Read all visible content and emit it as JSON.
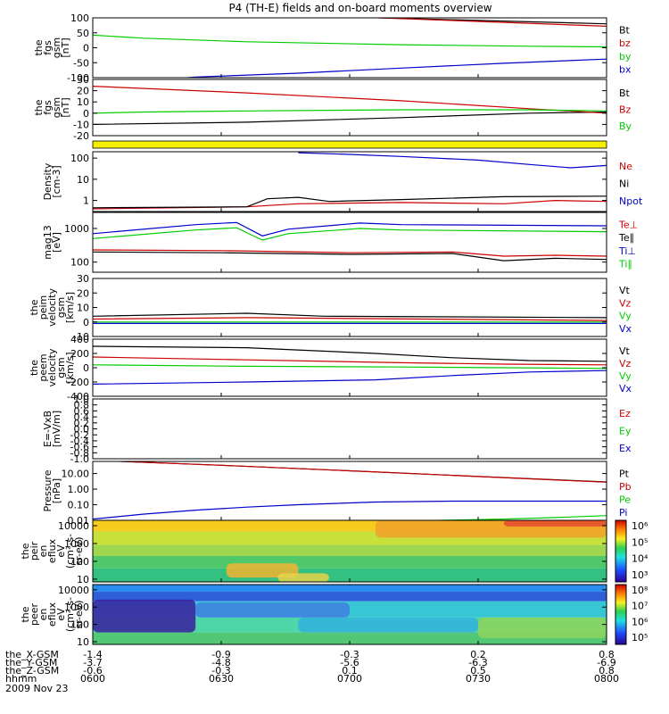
{
  "title": "P4 (TH-E) fields and on-board moments overview",
  "date_label": "2009 Nov 23",
  "footer": {
    "rows": [
      {
        "label": "the_X-GSM",
        "values": [
          "-1.4",
          "-0.9",
          "-0.3",
          "0.2",
          "0.8"
        ]
      },
      {
        "label": "the_Y-GSM",
        "values": [
          "-3.7",
          "-4.8",
          "-5.6",
          "-6.3",
          "-6.9"
        ]
      },
      {
        "label": "the_Z-GSM",
        "values": [
          "-0.6",
          "-0.3",
          "0.1",
          "0.5",
          "0.8"
        ]
      },
      {
        "label": "hhmm",
        "values": [
          "0600",
          "0630",
          "0700",
          "0730",
          "0800"
        ]
      }
    ]
  },
  "colorbars": [
    {
      "labels": [
        "10⁶",
        "10⁵",
        "10⁴",
        "10³"
      ]
    },
    {
      "labels": [
        "10⁸",
        "10⁷",
        "10⁶",
        "10⁵"
      ]
    }
  ],
  "chart_data": [
    {
      "type": "line",
      "ylabel": [
        "the",
        "fgs",
        "gsm",
        "[nT]"
      ],
      "ylim": [
        -100,
        100
      ],
      "yticks": [
        "100",
        "50",
        "0",
        "-50",
        "-100"
      ],
      "x": [
        "0600",
        "0630",
        "0700",
        "0730",
        "0800"
      ],
      "series": [
        {
          "name": "Bt",
          "color": "#000000",
          "x": [
            0.0,
            0.28,
            0.56,
            1.0
          ],
          "values": [
            120,
            112,
            100,
            80
          ]
        },
        {
          "name": "bz",
          "color": "#cc0000",
          "x": [
            0.0,
            0.28,
            0.56,
            1.0
          ],
          "values": [
            128,
            117,
            100,
            72
          ]
        },
        {
          "name": "by",
          "color": "#00cc00",
          "x": [
            0.0,
            0.1,
            0.3,
            0.6,
            0.85,
            1.0
          ],
          "values": [
            42,
            32,
            20,
            10,
            5,
            3
          ]
        },
        {
          "name": "bx",
          "color": "#0000cc",
          "x": [
            0.0,
            0.2,
            0.4,
            0.6,
            0.8,
            1.0
          ],
          "values": [
            -125,
            -98,
            -85,
            -68,
            -52,
            -38
          ]
        }
      ]
    },
    {
      "type": "line",
      "ylabel": [
        "the",
        "fgs",
        "gsm",
        "[nT]"
      ],
      "ylim": [
        -20,
        30
      ],
      "yticks": [
        "30",
        "20",
        "10",
        "0",
        "-10",
        "-20"
      ],
      "x": [
        "0600",
        "0630",
        "0700",
        "0730",
        "0800"
      ],
      "series": [
        {
          "name": "Bt",
          "color": "#000000",
          "x": [
            0.0,
            0.3,
            0.6,
            0.85,
            1.0
          ],
          "values": [
            -10,
            -8,
            -4,
            0,
            1
          ]
        },
        {
          "name": "Bz",
          "color": "#cc0000",
          "x": [
            0.0,
            0.3,
            0.6,
            0.85,
            1.0
          ],
          "values": [
            24,
            18,
            11,
            4,
            0
          ]
        },
        {
          "name": "By",
          "color": "#00cc00",
          "x": [
            0.0,
            0.1,
            0.3,
            0.6,
            0.85,
            1.0
          ],
          "values": [
            0,
            1,
            2,
            3,
            3,
            2
          ]
        }
      ]
    },
    {
      "type": "line",
      "ylabel": [
        "Density",
        "[cm-3]"
      ],
      "scale": "log",
      "ylim": [
        0.3,
        200
      ],
      "yticks": [
        "100",
        "10",
        "1"
      ],
      "x": [
        "0600",
        "0630",
        "0700",
        "0730",
        "0800"
      ],
      "series": [
        {
          "name": "Ne",
          "color": "#cc0000",
          "x": [
            0.0,
            0.3,
            0.4,
            0.6,
            0.8,
            0.9,
            1.0
          ],
          "values": [
            0.4,
            0.5,
            0.7,
            0.8,
            0.7,
            1.0,
            0.9
          ]
        },
        {
          "name": "Ni",
          "color": "#000000",
          "x": [
            0.0,
            0.3,
            0.34,
            0.4,
            0.46,
            0.6,
            0.8,
            1.0
          ],
          "values": [
            0.45,
            0.5,
            1.2,
            1.4,
            0.9,
            1.1,
            1.5,
            1.6
          ]
        },
        {
          "name": "Npot",
          "color": "#0000cc",
          "x": [
            0.4,
            0.5,
            0.6,
            0.75,
            0.85,
            0.93,
            1.0
          ],
          "values": [
            180,
            150,
            120,
            80,
            50,
            35,
            45
          ]
        }
      ]
    },
    {
      "type": "line",
      "ylabel": [
        "mag13",
        "[eV]"
      ],
      "scale": "log",
      "ylim": [
        50,
        3000
      ],
      "yticks": [
        "1000",
        "100"
      ],
      "x": [
        "0600",
        "0630",
        "0700",
        "0730",
        "0800"
      ],
      "series": [
        {
          "name": "Te⊥",
          "color": "#cc0000",
          "x": [
            0.0,
            0.25,
            0.5,
            0.7,
            0.8,
            0.9,
            1.0
          ],
          "values": [
            230,
            220,
            190,
            200,
            150,
            160,
            150
          ]
        },
        {
          "name": "Te∥",
          "color": "#000000",
          "x": [
            0.0,
            0.25,
            0.5,
            0.7,
            0.8,
            0.9,
            1.0
          ],
          "values": [
            200,
            190,
            170,
            180,
            110,
            130,
            120
          ]
        },
        {
          "name": "Ti⊥",
          "color": "#0000cc",
          "x": [
            0.0,
            0.2,
            0.28,
            0.33,
            0.38,
            0.52,
            0.6,
            1.0
          ],
          "values": [
            700,
            1300,
            1500,
            600,
            950,
            1450,
            1300,
            1200
          ]
        },
        {
          "name": "Ti∥",
          "color": "#00cc00",
          "x": [
            0.0,
            0.2,
            0.28,
            0.33,
            0.38,
            0.52,
            0.6,
            1.0
          ],
          "values": [
            500,
            900,
            1050,
            450,
            700,
            1000,
            900,
            800
          ]
        }
      ]
    },
    {
      "type": "line",
      "ylabel": [
        "the",
        "peim",
        "velocity",
        "gsm",
        "[km/s]"
      ],
      "ylim": [
        -10,
        30
      ],
      "yticks": [
        "30",
        "20",
        "10",
        "0",
        "-10"
      ],
      "x": [
        "0600",
        "0630",
        "0700",
        "0730",
        "0800"
      ],
      "series": [
        {
          "name": "Vt",
          "color": "#000000",
          "x": [
            0.0,
            0.3,
            0.45,
            1.0
          ],
          "values": [
            4,
            6,
            4,
            3
          ]
        },
        {
          "name": "Vz",
          "color": "#cc0000",
          "x": [
            0.0,
            0.3,
            1.0
          ],
          "values": [
            2,
            3,
            1
          ]
        },
        {
          "name": "Vy",
          "color": "#00cc00",
          "x": [
            0.0,
            0.3,
            1.0
          ],
          "values": [
            0,
            0,
            0
          ]
        },
        {
          "name": "Vx",
          "color": "#0000cc",
          "x": [
            0.0,
            0.3,
            1.0
          ],
          "values": [
            -1,
            -1,
            -1
          ]
        }
      ]
    },
    {
      "type": "line",
      "ylabel": [
        "the",
        "peem",
        "velocity",
        "gsm",
        "[km/s]"
      ],
      "ylim": [
        -400,
        400
      ],
      "yticks": [
        "400",
        "200",
        "0",
        "-200",
        "-400"
      ],
      "x": [
        "0600",
        "0630",
        "0700",
        "0730",
        "0800"
      ],
      "series": [
        {
          "name": "Vt",
          "color": "#000000",
          "x": [
            0.0,
            0.3,
            0.55,
            0.7,
            0.85,
            1.0
          ],
          "values": [
            300,
            280,
            200,
            140,
            100,
            90
          ]
        },
        {
          "name": "Vz",
          "color": "#cc0000",
          "x": [
            0.0,
            0.3,
            0.6,
            0.8,
            1.0
          ],
          "values": [
            150,
            110,
            70,
            50,
            40
          ]
        },
        {
          "name": "Vy",
          "color": "#00cc00",
          "x": [
            0.0,
            0.3,
            0.6,
            0.8,
            1.0
          ],
          "values": [
            40,
            20,
            10,
            0,
            -10
          ]
        },
        {
          "name": "Vx",
          "color": "#0000cc",
          "x": [
            0.0,
            0.3,
            0.55,
            0.7,
            0.85,
            1.0
          ],
          "values": [
            -230,
            -200,
            -170,
            -110,
            -60,
            -40
          ]
        }
      ]
    },
    {
      "type": "line",
      "ylabel": [
        "E=-VxB",
        "[mV/m]"
      ],
      "ylim": [
        -1.0,
        1.0
      ],
      "yticks": [
        "1.0",
        "0.8",
        "0.6",
        "0.4",
        "0.2",
        "0.0",
        "-0.2",
        "-0.4",
        "-0.6",
        "-0.8",
        "-1.0"
      ],
      "x": [
        "0600",
        "0630",
        "0700",
        "0730",
        "0800"
      ],
      "series": [
        {
          "name": "Ez",
          "color": "#cc0000",
          "x": [],
          "values": []
        },
        {
          "name": "Ey",
          "color": "#00cc00",
          "x": [],
          "values": []
        },
        {
          "name": "Ex",
          "color": "#0000cc",
          "x": [],
          "values": []
        }
      ]
    },
    {
      "type": "line",
      "ylabel": [
        "Pressure",
        "[nPa]"
      ],
      "scale": "log",
      "ylim": [
        0.01,
        60
      ],
      "yticks": [
        "10.00",
        "1.00",
        "0.10",
        "0.01"
      ],
      "x": [
        "0600",
        "0630",
        "0700",
        "0730",
        "0800"
      ],
      "series": [
        {
          "name": "Pt",
          "color": "#000000",
          "x": [
            0.0,
            0.25,
            0.5,
            0.75,
            1.0
          ],
          "values": [
            70,
            34,
            15,
            6.5,
            2.9
          ]
        },
        {
          "name": "Pb",
          "color": "#cc0000",
          "x": [
            0.0,
            0.25,
            0.5,
            0.75,
            1.0
          ],
          "values": [
            70,
            34,
            15,
            6.5,
            2.8
          ]
        },
        {
          "name": "Pe",
          "color": "#00cc00",
          "x": [
            0.4,
            0.6,
            0.8,
            0.9,
            1.0
          ],
          "values": [
            0.008,
            0.009,
            0.012,
            0.015,
            0.02
          ]
        },
        {
          "name": "Pi",
          "color": "#0000cc",
          "x": [
            0.0,
            0.1,
            0.2,
            0.3,
            0.4,
            0.55,
            0.7,
            1.0
          ],
          "values": [
            0.012,
            0.025,
            0.045,
            0.07,
            0.1,
            0.15,
            0.17,
            0.17
          ]
        }
      ]
    },
    {
      "type": "heatmap",
      "ylabel": [
        "the",
        "peir",
        "en",
        "eflux",
        "eV",
        "(cm²-s-",
        "sr-eV)"
      ],
      "scale": "log",
      "ylim": [
        7,
        20000
      ],
      "yticks": [
        "10000",
        "1000",
        "100",
        "10"
      ],
      "x": [
        "0600",
        "0630",
        "0700",
        "0730",
        "0800"
      ],
      "bands": [
        {
          "from": 0.0,
          "to": 0.18,
          "color": "#f7cc1e"
        },
        {
          "from": 0.18,
          "to": 0.4,
          "color": "#c8e03a"
        },
        {
          "from": 0.4,
          "to": 0.58,
          "color": "#9ed64f"
        },
        {
          "from": 0.58,
          "to": 0.78,
          "color": "#4ec86a"
        },
        {
          "from": 0.78,
          "to": 1.0,
          "color": "#33c080"
        }
      ],
      "blobs": [
        {
          "x0": 0.26,
          "x1": 0.4,
          "y0": 0.7,
          "y1": 0.93,
          "color": "#f2b431"
        },
        {
          "x0": 0.36,
          "x1": 0.46,
          "y0": 0.86,
          "y1": 1.0,
          "color": "#e8d24a"
        },
        {
          "x0": 0.55,
          "x1": 1.0,
          "y0": 0.0,
          "y1": 0.28,
          "color": "#f0a02a"
        },
        {
          "x0": 0.8,
          "x1": 1.0,
          "y0": 0.0,
          "y1": 0.1,
          "color": "#e8492d"
        }
      ]
    },
    {
      "type": "heatmap",
      "ylabel": [
        "the",
        "peer",
        "en",
        "eflux",
        "eV",
        "(cm²-s-",
        "sr-eV)"
      ],
      "scale": "log",
      "ylim": [
        7,
        20000
      ],
      "yticks": [
        "10000",
        "1000",
        "100",
        "10"
      ],
      "x": [
        "0600",
        "0630",
        "0700",
        "0730",
        "0800"
      ],
      "bands": [
        {
          "from": 0.0,
          "to": 0.12,
          "color": "#2a8df0"
        },
        {
          "from": 0.12,
          "to": 0.28,
          "color": "#2e5fd8"
        },
        {
          "from": 0.28,
          "to": 0.55,
          "color": "#36c6d4"
        },
        {
          "from": 0.55,
          "to": 0.8,
          "color": "#4fd6a8"
        },
        {
          "from": 0.8,
          "to": 1.0,
          "color": "#52c877"
        }
      ],
      "blobs": [
        {
          "x0": 0.0,
          "x1": 0.2,
          "y0": 0.25,
          "y1": 0.8,
          "color": "#3a1f9e"
        },
        {
          "x0": 0.2,
          "x1": 0.5,
          "y0": 0.3,
          "y1": 0.55,
          "color": "#3f7fe0"
        },
        {
          "x0": 0.4,
          "x1": 0.75,
          "y0": 0.55,
          "y1": 0.8,
          "color": "#2fb3de"
        },
        {
          "x0": 0.75,
          "x1": 1.0,
          "y0": 0.55,
          "y1": 0.9,
          "color": "#8dd35b"
        }
      ]
    }
  ]
}
